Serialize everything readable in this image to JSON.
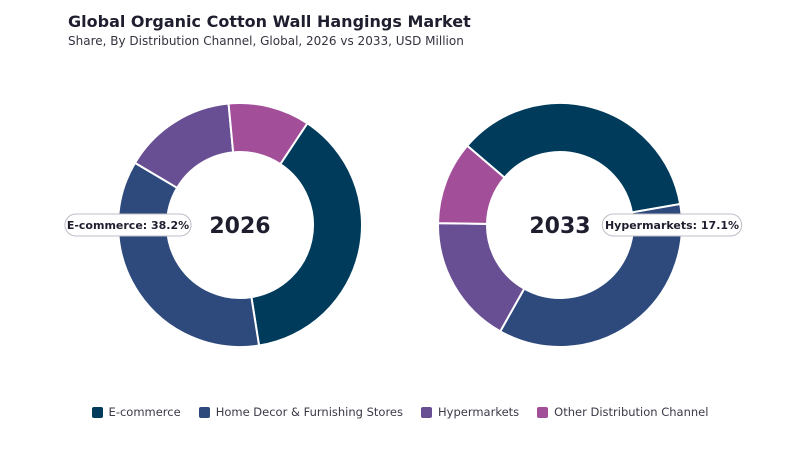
{
  "header": {
    "title": "Global Organic Cotton Wall Hangings Market",
    "subtitle": "Share, By Distribution Channel, Global, 2026 vs 2033, USD Million"
  },
  "colors": {
    "E-commerce": "#003B5C",
    "Home Decor & Furnishing Stores": "#2E4A7D",
    "Hypermarkets": "#684F93",
    "Other Distribution Channel": "#A24E99"
  },
  "chart_data": [
    {
      "type": "pie",
      "variant": "donut",
      "center_label": "2026",
      "categories": [
        "E-commerce",
        "Home Decor & Furnishing Stores",
        "Hypermarkets",
        "Other Distribution Channel"
      ],
      "values": [
        38.2,
        36.0,
        15.0,
        10.8
      ],
      "callout": {
        "category": "E-commerce",
        "text": "E-commerce: 38.2%"
      }
    },
    {
      "type": "pie",
      "variant": "donut",
      "center_label": "2033",
      "categories": [
        "E-commerce",
        "Home Decor & Furnishing Stores",
        "Hypermarkets",
        "Other Distribution Channel"
      ],
      "values": [
        36.0,
        35.9,
        17.1,
        11.0
      ],
      "callout": {
        "category": "Hypermarkets",
        "text": "Hypermarkets: 17.1%"
      }
    }
  ],
  "legend": {
    "items": [
      "E-commerce",
      "Home Decor & Furnishing Stores",
      "Hypermarkets",
      "Other Distribution Channel"
    ]
  }
}
